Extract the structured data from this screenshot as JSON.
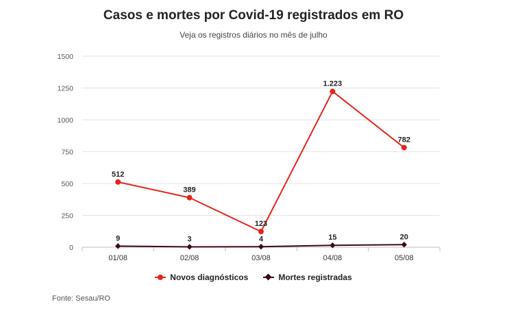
{
  "chart_data": {
    "type": "line",
    "title": "Casos e mortes por Covid-19 registrados em RO",
    "subtitle": "Veja os registros diários no mês de julho",
    "categories": [
      "01/08",
      "02/08",
      "03/08",
      "04/08",
      "05/08"
    ],
    "series": [
      {
        "name": "Novos diagnósticos",
        "values": [
          512,
          389,
          123,
          1223,
          782
        ],
        "labels": [
          "512",
          "389",
          "123",
          "1.223",
          "782"
        ],
        "color": "#e8231b",
        "marker": "circle"
      },
      {
        "name": "Mortes registradas",
        "values": [
          9,
          3,
          4,
          15,
          20
        ],
        "labels": [
          "9",
          "3",
          "4",
          "15",
          "20"
        ],
        "color": "#3b0a1f",
        "marker": "diamond"
      }
    ],
    "ylim": [
      0,
      1500
    ],
    "yticks": [
      "0",
      "250",
      "500",
      "750",
      "1000",
      "1250",
      "1500"
    ],
    "grid": true,
    "legend_position": "bottom-center",
    "source": "Fonte: Sesau/RO"
  }
}
